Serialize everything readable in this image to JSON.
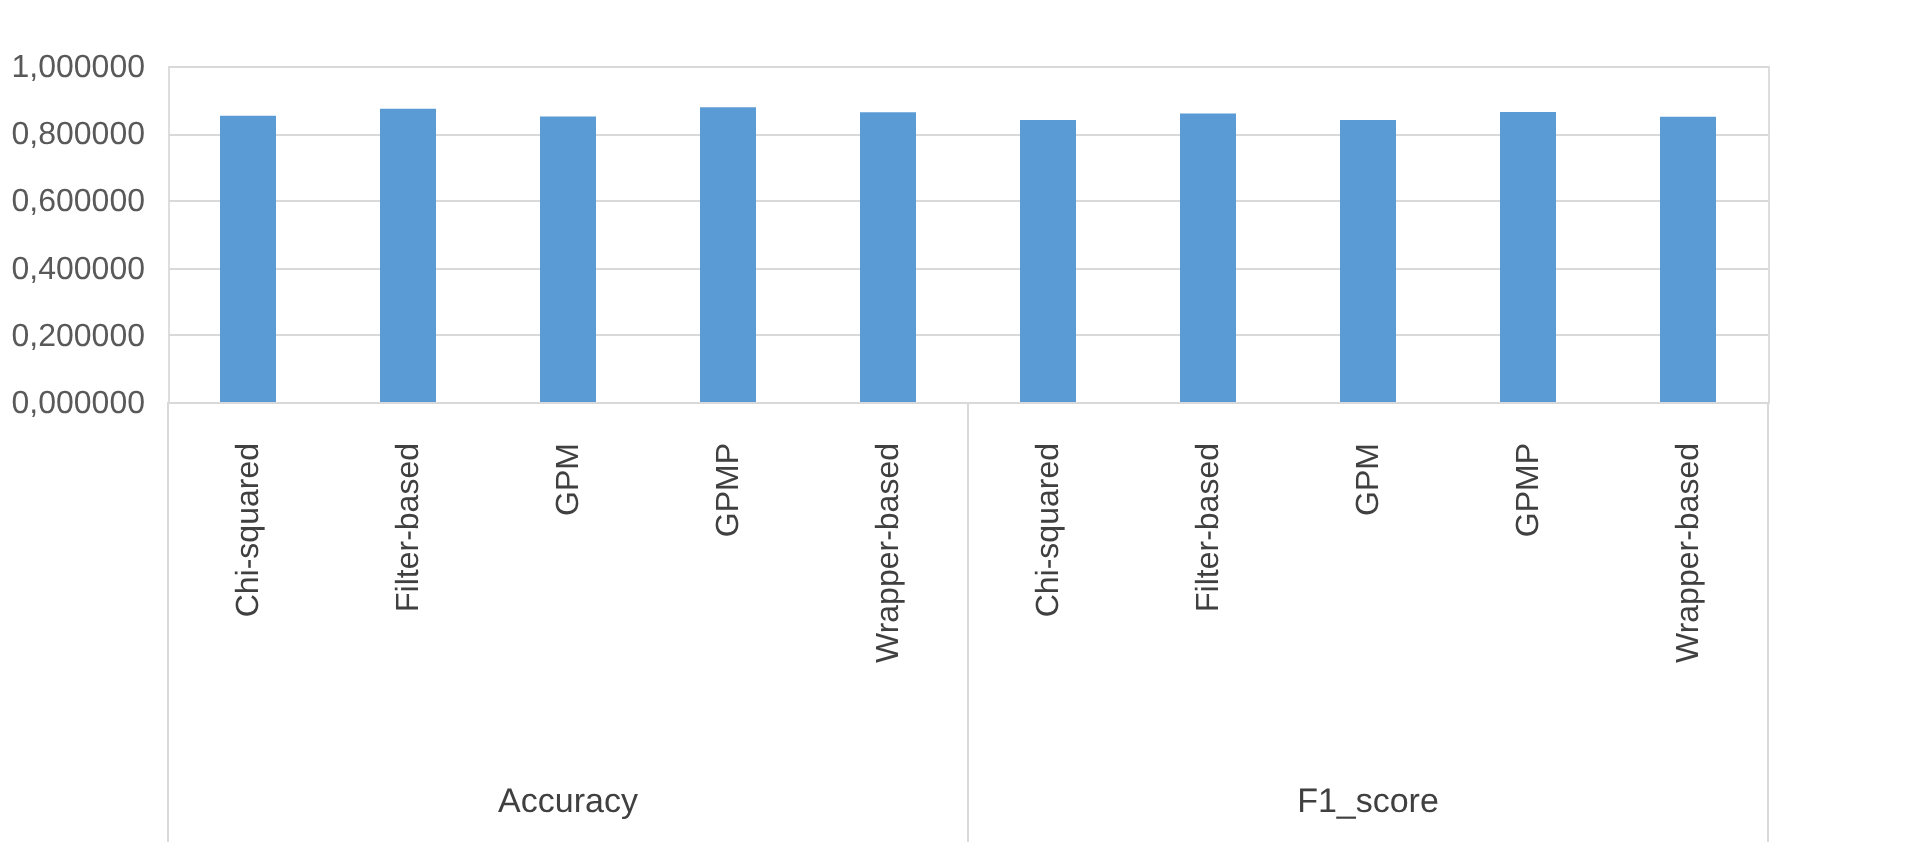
{
  "chart_data": {
    "type": "bar",
    "categories": [
      "Chi-squared",
      "Filter-based",
      "GPM",
      "GPMP",
      "Wrapper-based",
      "Chi-squared",
      "Filter-based",
      "GPM",
      "GPMP",
      "Wrapper-based"
    ],
    "values": [
      0.852,
      0.873,
      0.85,
      0.877,
      0.862,
      0.839,
      0.859,
      0.839,
      0.863,
      0.849
    ],
    "color": "#5b9bd5",
    "ylim": [
      0,
      1
    ],
    "yticks": [
      {
        "value": 0,
        "label": "0,000000"
      },
      {
        "value": 0.2,
        "label": "0,200000"
      },
      {
        "value": 0.4,
        "label": "0,400000"
      },
      {
        "value": 0.6,
        "label": "0,600000"
      },
      {
        "value": 0.8,
        "label": "0,800000"
      },
      {
        "value": 1.0,
        "label": "1,000000"
      }
    ],
    "annotations": [
      "Accuracy",
      "F1_score"
    ],
    "grid": true
  }
}
